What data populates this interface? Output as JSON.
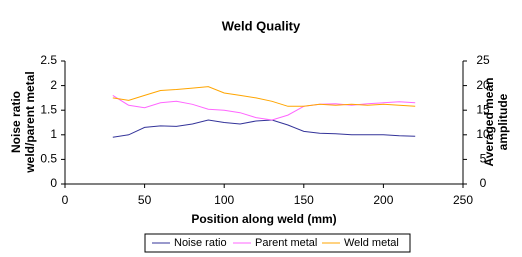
{
  "chart_data": {
    "type": "line",
    "title": "Weld Quality",
    "xlabel": "Position along weld (mm)",
    "ylabel": [
      "Noise ratio",
      "weld/parent metal"
    ],
    "y2label": [
      "Averaged mean",
      "amplitude"
    ],
    "x": [
      30,
      40,
      50,
      60,
      70,
      80,
      90,
      100,
      110,
      120,
      130,
      140,
      150,
      160,
      170,
      180,
      190,
      200,
      210,
      220
    ],
    "series": [
      {
        "name": "Noise ratio",
        "color": "#333399",
        "axis": "y",
        "values": [
          0.95,
          1.0,
          1.15,
          1.18,
          1.17,
          1.22,
          1.3,
          1.25,
          1.22,
          1.28,
          1.3,
          1.2,
          1.07,
          1.03,
          1.02,
          1.0,
          1.0,
          1.0,
          0.98,
          0.97
        ]
      },
      {
        "name": "Parent metal",
        "color": "#ff66ff",
        "axis": "y2",
        "values": [
          18,
          16,
          15.5,
          16.5,
          16.8,
          16.2,
          15.2,
          15,
          14.5,
          13.5,
          13,
          14,
          15.8,
          16.2,
          16.3,
          16,
          16.3,
          16.5,
          16.7,
          16.5
        ]
      },
      {
        "name": "Weld metal",
        "color": "#ffa500",
        "axis": "y2",
        "values": [
          17.5,
          17,
          18,
          19,
          19.2,
          19.5,
          19.8,
          18.5,
          18,
          17.5,
          16.8,
          15.8,
          15.8,
          16.2,
          16,
          16.2,
          16,
          16.2,
          16,
          15.8
        ]
      }
    ],
    "xlim": [
      0,
      250
    ],
    "xticks": [
      0,
      50,
      100,
      150,
      200,
      250
    ],
    "ylim": [
      0,
      2.5
    ],
    "yticks": [
      0,
      0.5,
      1,
      1.5,
      2,
      2.5
    ],
    "y2lim": [
      0,
      25
    ],
    "y2ticks": [
      0,
      5,
      10,
      15,
      20,
      25
    ],
    "grid": false,
    "legend": "bottom"
  }
}
